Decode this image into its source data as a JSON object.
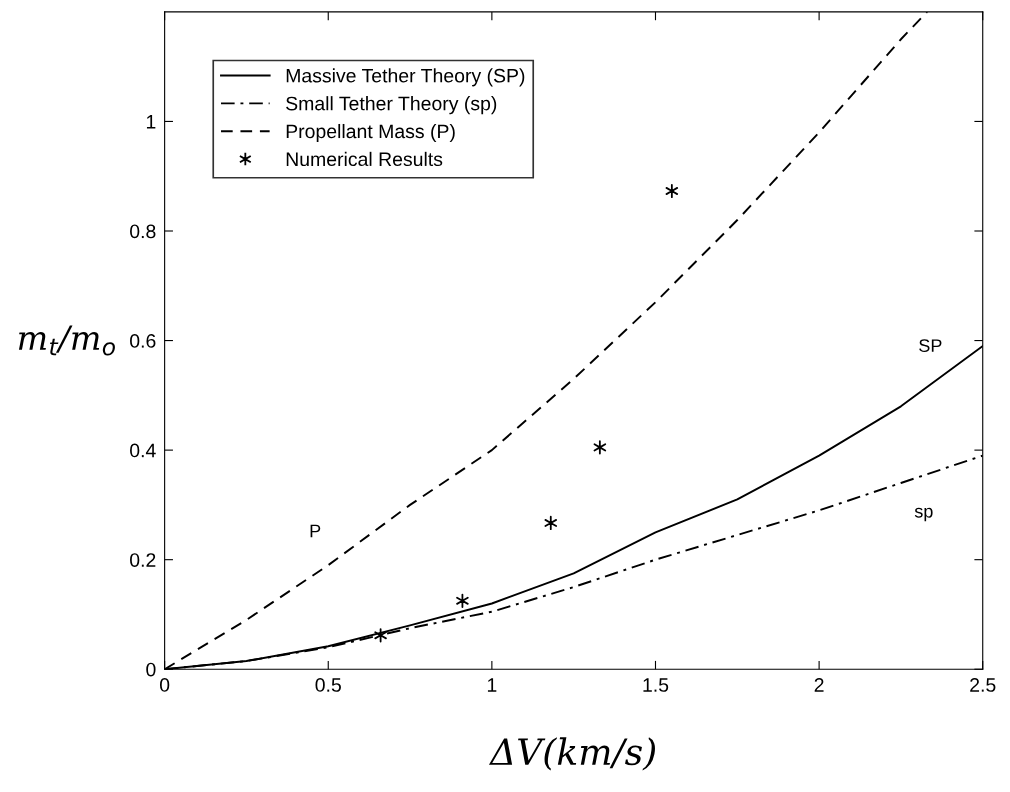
{
  "chart_data": {
    "type": "line",
    "xlabel": "ΔV(km/s)",
    "ylabel": "m$_{t}$/m$_{o}$",
    "xlim": [
      0,
      2.5
    ],
    "ylim": [
      0,
      1.2
    ],
    "xticks": [
      0,
      0.5,
      1,
      1.5,
      2,
      2.5
    ],
    "yticks": [
      0,
      0.2,
      0.4,
      0.6,
      0.8,
      1
    ],
    "grid": false,
    "legend": "top left",
    "series": [
      {
        "name": "Massive Tether Theory (SP)",
        "color": "#000000",
        "line_style": "solid",
        "marker": "none",
        "x": [
          0,
          0.25,
          0.5,
          0.75,
          1,
          1.25,
          1.5,
          1.75,
          2,
          2.25,
          2.5
        ],
        "values": [
          0,
          0.015,
          0.042,
          0.08,
          0.12,
          0.175,
          0.25,
          0.31,
          0.39,
          0.48,
          0.59
        ]
      },
      {
        "name": "Small Tether Theory (sp)",
        "color": "#000000",
        "line_style": "dashdot",
        "marker": "none",
        "x": [
          0,
          0.25,
          0.5,
          0.75,
          1,
          1.25,
          1.5,
          1.75,
          2,
          2.25,
          2.5
        ],
        "values": [
          0,
          0.015,
          0.04,
          0.075,
          0.105,
          0.15,
          0.2,
          0.245,
          0.29,
          0.34,
          0.39
        ]
      },
      {
        "name": "Propellant Mass (P)",
        "color": "#000000",
        "line_style": "dashed",
        "marker": "none",
        "x": [
          0,
          0.25,
          0.5,
          0.75,
          1,
          1.25,
          1.5,
          1.75,
          2,
          2.25,
          2.33
        ],
        "values": [
          0,
          0.09,
          0.19,
          0.3,
          0.4,
          0.53,
          0.67,
          0.82,
          0.98,
          1.15,
          1.2
        ]
      },
      {
        "name": "Numerical Results",
        "type": "scatter",
        "color": "#000000",
        "marker": "cross",
        "x": [
          0.66,
          0.91,
          1.18,
          1.33,
          1.55
        ],
        "values": [
          0.062,
          0.125,
          0.267,
          0.405,
          0.873
        ]
      }
    ],
    "annotations": [
      "P",
      "SP",
      "sp"
    ]
  }
}
